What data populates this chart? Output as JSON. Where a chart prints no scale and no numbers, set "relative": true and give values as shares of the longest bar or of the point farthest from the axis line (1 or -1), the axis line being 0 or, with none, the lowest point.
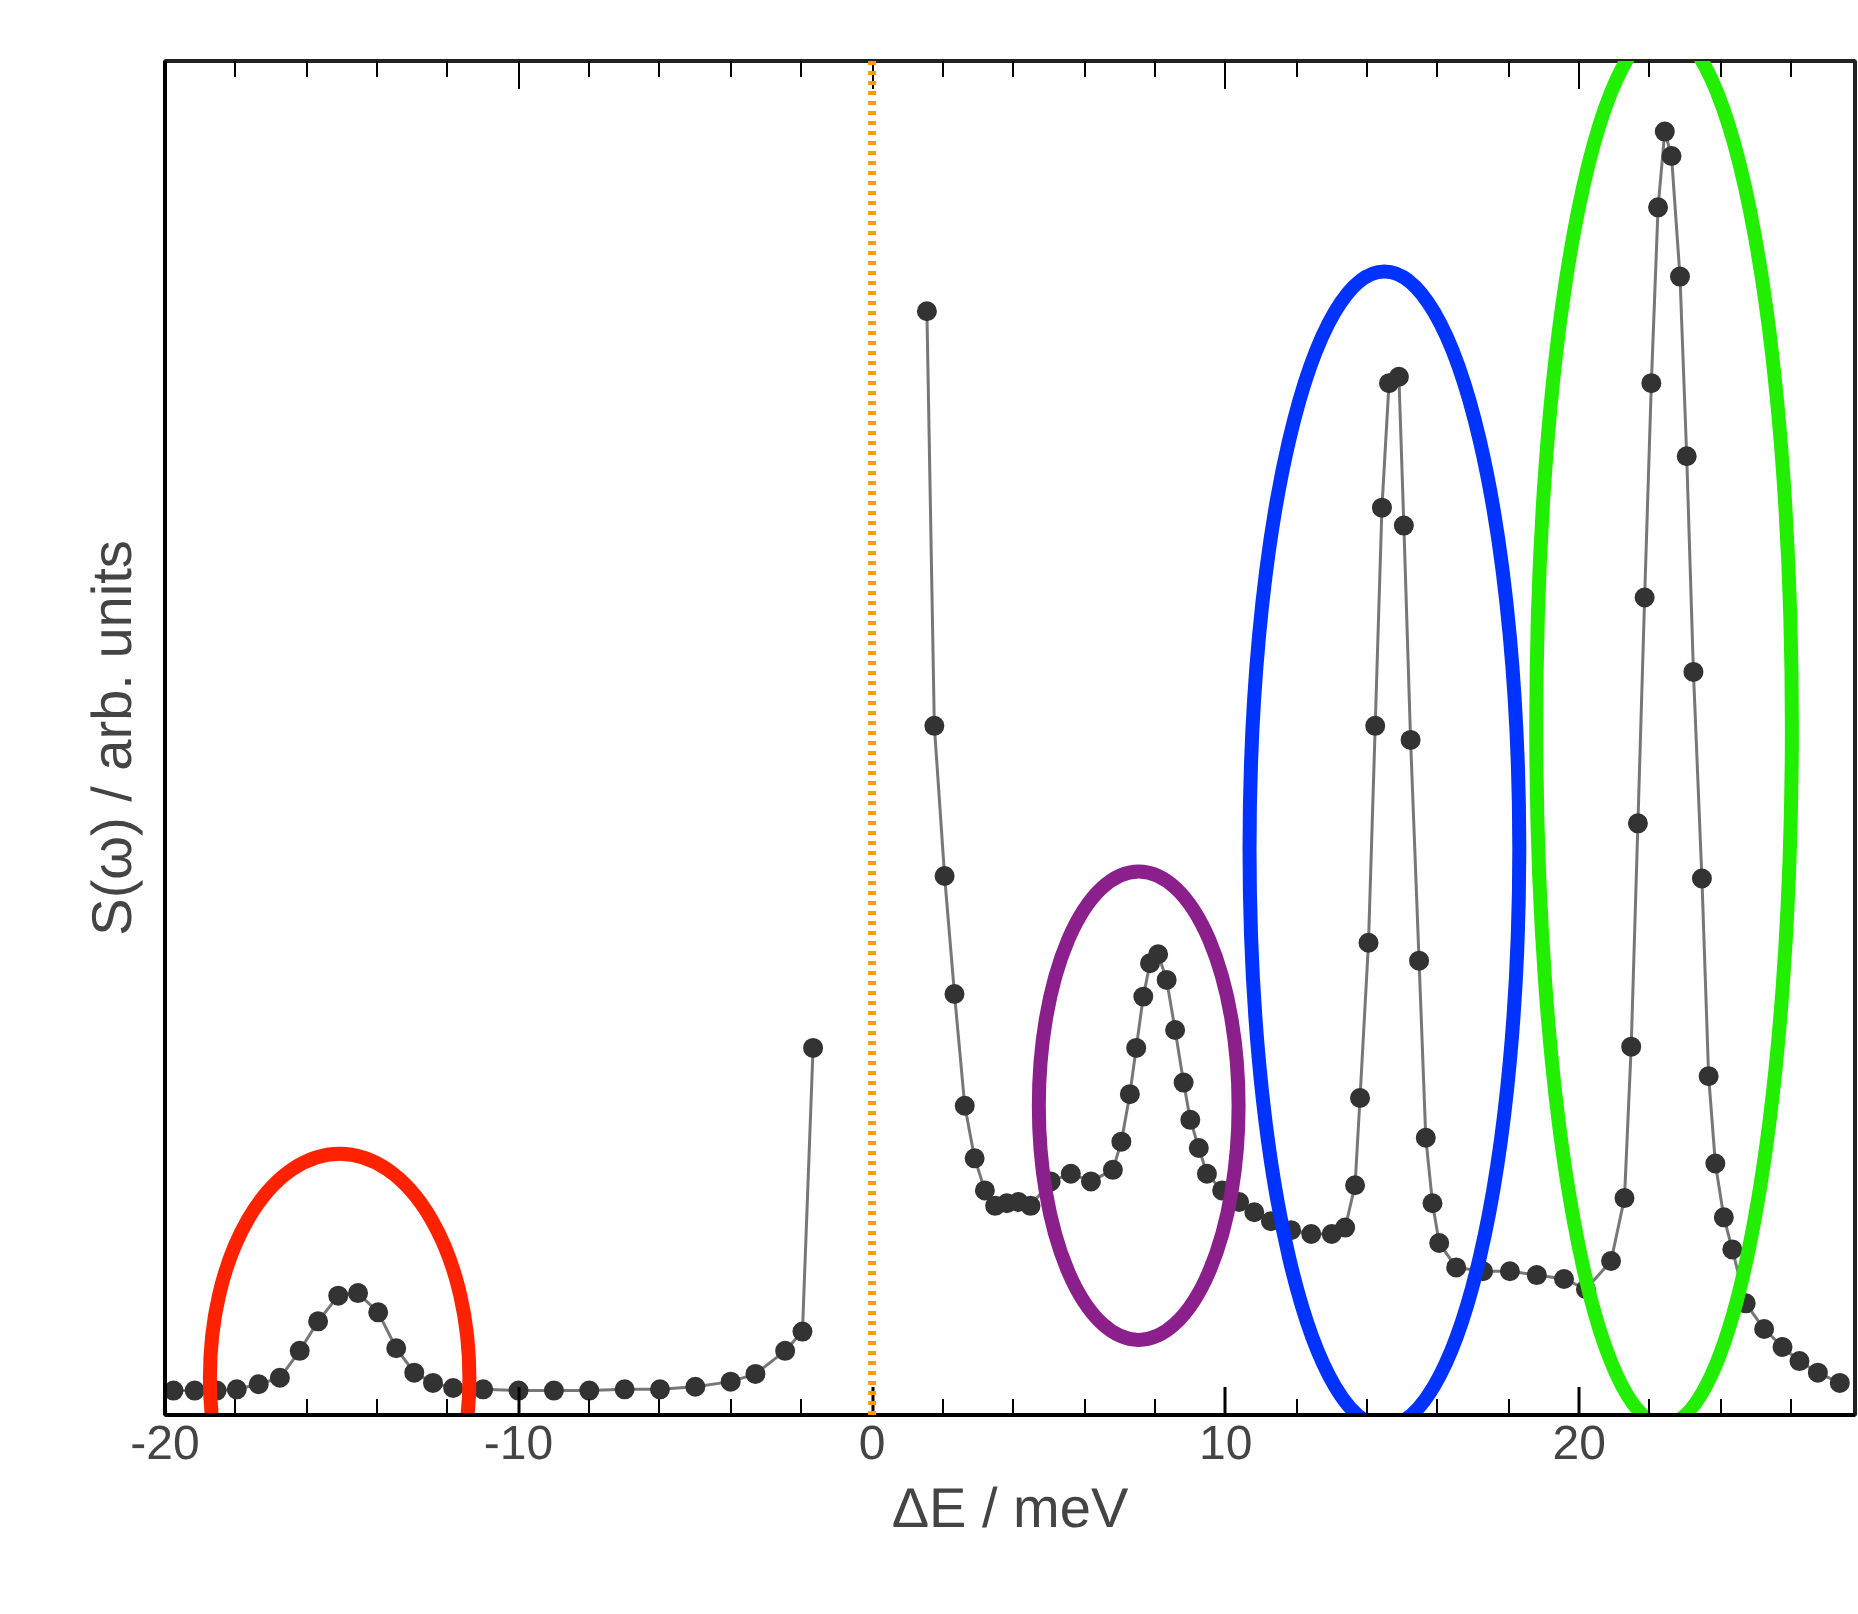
{
  "chart_data": {
    "type": "line",
    "relative": true,
    "xlabel": "ΔE / meV",
    "ylabel": "S(ω) / arb. units",
    "xlim": [
      -20,
      27.8
    ],
    "xticks": [
      -20,
      {
        "value": -18,
        "label": null
      },
      {
        "value": -16,
        "label": null
      },
      {
        "value": -14,
        "label": null
      },
      {
        "value": -12,
        "label": null
      },
      -10,
      {
        "value": -8,
        "label": null
      },
      {
        "value": -6,
        "label": null
      },
      {
        "value": -4,
        "label": null
      },
      {
        "value": -2,
        "label": null
      },
      0,
      {
        "value": 2,
        "label": null
      },
      {
        "value": 4,
        "label": null
      },
      {
        "value": 6,
        "label": null
      },
      {
        "value": 8,
        "label": null
      },
      10,
      {
        "value": 12,
        "label": null
      },
      {
        "value": 14,
        "label": null
      },
      {
        "value": 16,
        "label": null
      },
      {
        "value": 18,
        "label": null
      },
      20,
      {
        "value": 22,
        "label": null
      },
      {
        "value": 24,
        "label": null
      },
      {
        "value": 26,
        "label": null
      }
    ],
    "tick_labels": "x",
    "grid": false,
    "marker": "circle",
    "line_style": "solid",
    "ref_lines": [
      {
        "axis": "x",
        "value": 0,
        "color": "#ff9900",
        "line_style": "dotted"
      }
    ],
    "series": [
      {
        "color": "#333333",
        "x": [
          -19.76,
          -19.16,
          -18.54,
          -17.97,
          -17.35,
          -16.75,
          -16.19,
          -15.67,
          -15.1,
          -14.54,
          -13.97,
          -13.46,
          -12.95,
          -12.42,
          -11.85,
          -11,
          -10,
          -9,
          -8,
          -7,
          -6,
          -5,
          -4,
          -3.3,
          -2.46,
          -1.97,
          -1.67,
          0,
          1.55,
          1.76,
          2.05,
          2.33,
          2.62,
          2.9,
          3.19,
          3.48,
          3.81,
          4.14,
          4.48,
          5.05,
          5.62,
          6.19,
          6.81,
          7.05,
          7.29,
          7.47,
          7.67,
          7.86,
          8.09,
          8.33,
          8.57,
          8.81,
          9.0,
          9.24,
          9.47,
          9.9,
          10.38,
          10.81,
          11.28,
          11.85,
          12.42,
          13.0,
          13.38,
          13.66,
          13.8,
          14.04,
          14.23,
          14.42,
          14.62,
          14.9,
          15.04,
          15.23,
          15.47,
          15.66,
          15.85,
          16.04,
          16.52,
          17.28,
          18.04,
          18.8,
          19.57,
          20.19,
          20.9,
          21.28,
          21.47,
          21.66,
          21.85,
          22.04,
          22.23,
          22.42,
          22.61,
          22.85,
          23.04,
          23.23,
          23.47,
          23.66,
          23.85,
          24.09,
          24.33,
          24.71,
          25.23,
          25.75,
          26.23,
          26.75,
          27.37
        ],
        "values": [
          0.019,
          0.019,
          0.019,
          0.02,
          0.024,
          0.029,
          0.05,
          0.073,
          0.093,
          0.095,
          0.08,
          0.052,
          0.033,
          0.025,
          0.021,
          0.02,
          0.019,
          0.019,
          0.019,
          0.02,
          0.02,
          0.022,
          0.026,
          0.032,
          0.05,
          0.065,
          0.286,
          null,
          0.86,
          0.537,
          0.42,
          0.328,
          0.241,
          0.2,
          0.175,
          0.163,
          0.165,
          0.166,
          0.163,
          0.182,
          0.188,
          0.182,
          0.191,
          0.213,
          0.25,
          0.286,
          0.326,
          0.352,
          0.359,
          0.339,
          0.3,
          0.259,
          0.23,
          0.208,
          0.188,
          0.175,
          0.166,
          0.158,
          0.151,
          0.144,
          0.141,
          0.141,
          0.146,
          0.179,
          0.247,
          0.368,
          0.537,
          0.707,
          0.804,
          0.809,
          0.693,
          0.526,
          0.354,
          0.216,
          0.165,
          0.134,
          0.115,
          0.112,
          0.112,
          0.109,
          0.106,
          0.098,
          0.12,
          0.169,
          0.287,
          0.461,
          0.637,
          0.804,
          0.941,
          1.0,
          0.981,
          0.887,
          0.747,
          0.579,
          0.418,
          0.264,
          0.196,
          0.154,
          0.129,
          0.087,
          0.067,
          0.053,
          0.042,
          0.033,
          0.025
        ]
      }
    ]
  }
}
